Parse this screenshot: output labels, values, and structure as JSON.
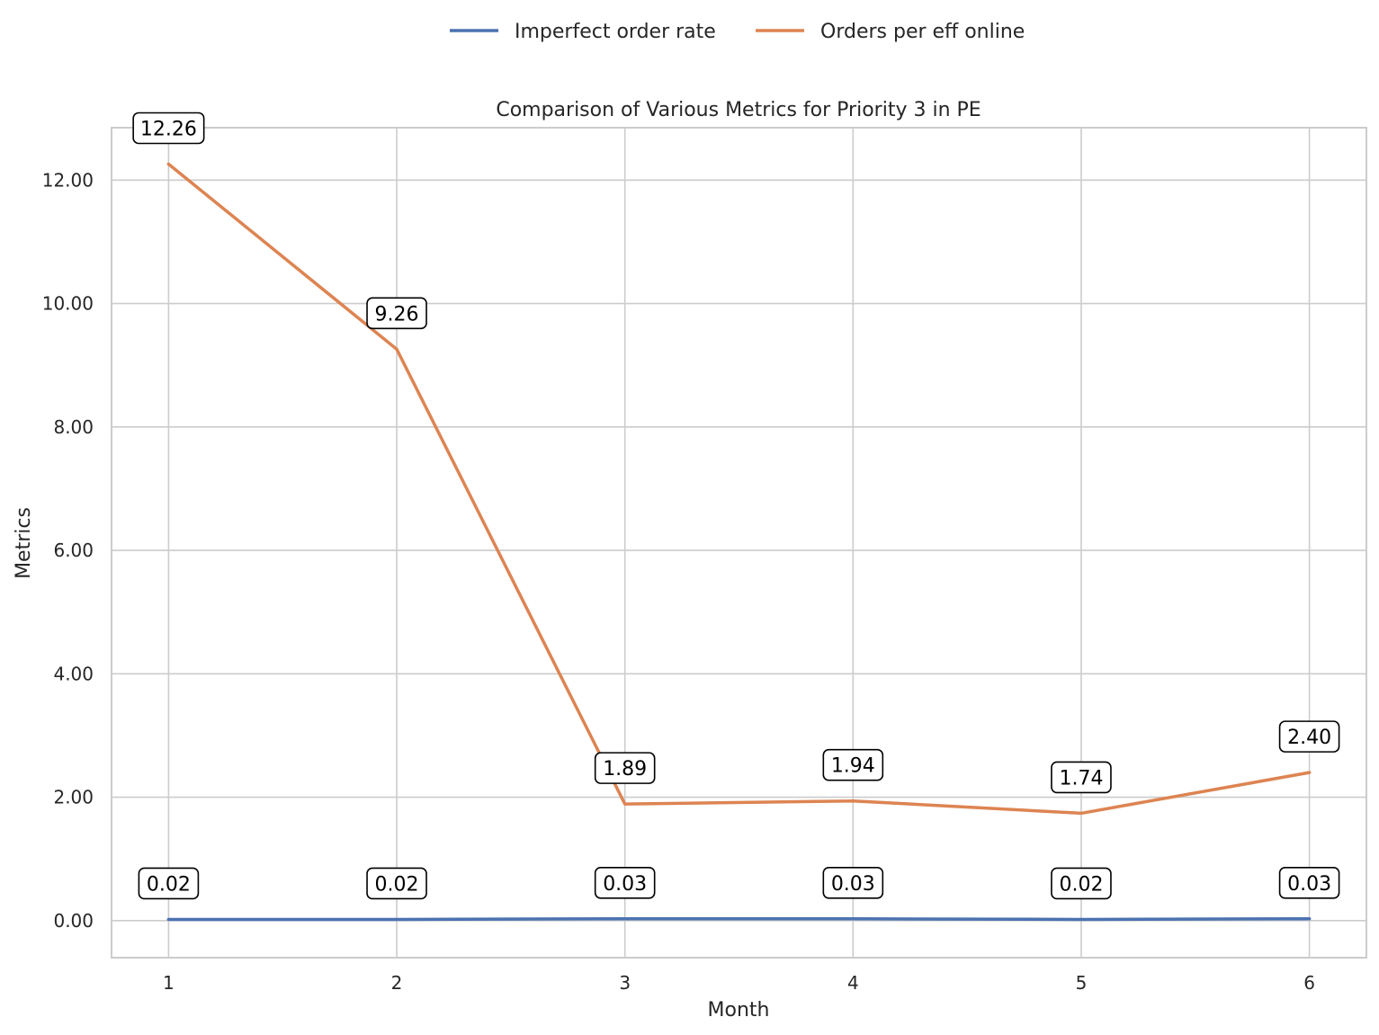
{
  "chart_data": {
    "type": "line",
    "title": "Comparison of Various Metrics for Priority 3 in PE",
    "xlabel": "Month",
    "ylabel": "Metrics",
    "x": [
      1,
      2,
      3,
      4,
      5,
      6
    ],
    "x_tick_labels": [
      "1",
      "2",
      "3",
      "4",
      "5",
      "6"
    ],
    "y_ticks": [
      0,
      2,
      4,
      6,
      8,
      10,
      12
    ],
    "y_tick_labels": [
      "0.00",
      "2.00",
      "4.00",
      "6.00",
      "8.00",
      "10.00",
      "12.00"
    ],
    "xlim": [
      0.75,
      6.25
    ],
    "ylim": [
      -0.6,
      12.85
    ],
    "grid": true,
    "legend_position": "top-center",
    "series": [
      {
        "name": "Imperfect order rate",
        "color": "#4c72b0",
        "values": [
          0.02,
          0.02,
          0.03,
          0.03,
          0.02,
          0.03
        ],
        "labels": [
          "0.02",
          "0.02",
          "0.03",
          "0.03",
          "0.02",
          "0.03"
        ]
      },
      {
        "name": "Orders per eff online",
        "color": "#dd8452",
        "values": [
          12.26,
          9.26,
          1.89,
          1.94,
          1.74,
          2.4
        ],
        "labels": [
          "12.26",
          "9.26",
          "1.89",
          "1.94",
          "1.74",
          "2.40"
        ]
      }
    ]
  }
}
